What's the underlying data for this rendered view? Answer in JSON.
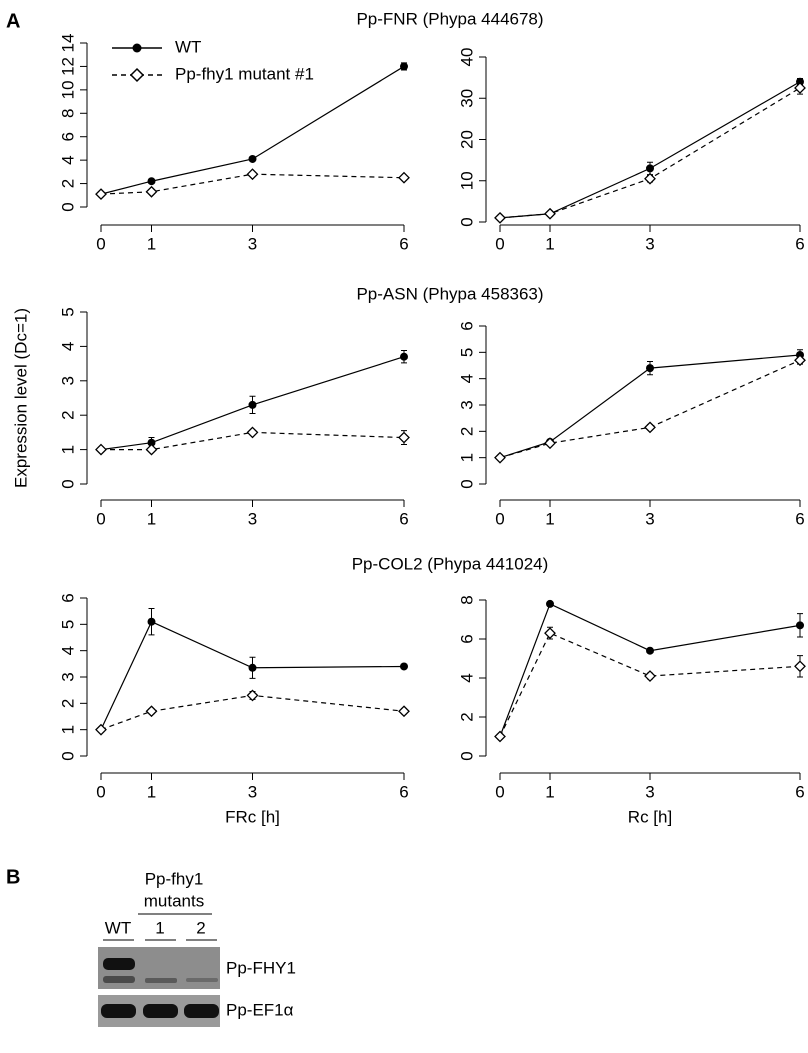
{
  "panel_labels": [
    "A",
    "B"
  ],
  "chart_data": [
    {
      "type": "line",
      "title": "Pp-FNR (Phypa 444678)",
      "x": [
        0,
        1,
        3,
        6
      ],
      "xlim": [
        0,
        6
      ],
      "xticks": [
        0,
        1,
        3,
        6
      ],
      "ylim": [
        0,
        14
      ],
      "yticks": [
        0,
        2,
        4,
        6,
        8,
        10,
        12,
        14
      ],
      "series": [
        {
          "name": "WT",
          "color": "#000000",
          "dashed": false,
          "marker": "circle",
          "values": [
            1.1,
            2.2,
            4.1,
            12.0
          ],
          "errors": [
            0.05,
            0.1,
            0.1,
            0.3
          ]
        },
        {
          "name": "Pp-fhy1 mutant #1",
          "color": "#000000",
          "dashed": true,
          "marker": "diamond",
          "values": [
            1.1,
            1.3,
            2.8,
            2.5
          ],
          "errors": [
            0.05,
            0.1,
            0.1,
            0.1
          ]
        }
      ]
    },
    {
      "type": "line",
      "x": [
        0,
        1,
        3,
        6
      ],
      "xlim": [
        0,
        6
      ],
      "xticks": [
        0,
        1,
        3,
        6
      ],
      "ylim": [
        0,
        40
      ],
      "yticks": [
        0,
        10,
        20,
        30,
        40
      ],
      "series": [
        {
          "color": "#000000",
          "dashed": false,
          "marker": "circle",
          "values": [
            1,
            2,
            13,
            34
          ],
          "errors": [
            0.2,
            0.3,
            1.5,
            0.8
          ]
        },
        {
          "color": "#000000",
          "dashed": true,
          "marker": "diamond",
          "values": [
            1,
            2,
            10.5,
            32.5
          ],
          "errors": [
            0.2,
            0.3,
            0.8,
            1.5
          ]
        }
      ]
    },
    {
      "type": "line",
      "title": "Pp-ASN (Phypa 458363)",
      "y_label": "Expression level (Dc=1)",
      "x": [
        0,
        1,
        3,
        6
      ],
      "xlim": [
        0,
        6
      ],
      "xticks": [
        0,
        1,
        3,
        6
      ],
      "ylim": [
        0,
        5
      ],
      "yticks": [
        0,
        1,
        2,
        3,
        4,
        5
      ],
      "series": [
        {
          "color": "#000000",
          "dashed": false,
          "marker": "circle",
          "values": [
            1,
            1.2,
            2.3,
            3.7
          ],
          "errors": [
            0.05,
            0.15,
            0.25,
            0.18
          ]
        },
        {
          "color": "#000000",
          "dashed": true,
          "marker": "diamond",
          "values": [
            1,
            1,
            1.5,
            1.35
          ],
          "errors": [
            0.02,
            0.05,
            0.07,
            0.2
          ]
        }
      ]
    },
    {
      "type": "line",
      "x": [
        0,
        1,
        3,
        6
      ],
      "xlim": [
        0,
        6
      ],
      "xticks": [
        0,
        1,
        3,
        6
      ],
      "ylim": [
        0,
        6
      ],
      "yticks": [
        0,
        1,
        2,
        3,
        4,
        5,
        6
      ],
      "series": [
        {
          "color": "#000000",
          "dashed": false,
          "marker": "circle",
          "values": [
            1,
            1.6,
            4.4,
            4.9
          ],
          "errors": [
            0.02,
            0.05,
            0.25,
            0.2
          ]
        },
        {
          "color": "#000000",
          "dashed": true,
          "marker": "diamond",
          "values": [
            1,
            1.55,
            2.15,
            4.7
          ],
          "errors": [
            0.02,
            0.05,
            0.1,
            0.15
          ]
        }
      ]
    },
    {
      "type": "line",
      "title": "Pp-COL2 (Phypa 441024)",
      "x_label": "FRc [h]",
      "x": [
        0,
        1,
        3,
        6
      ],
      "xlim": [
        0,
        6
      ],
      "xticks": [
        0,
        1,
        3,
        6
      ],
      "ylim": [
        0,
        6
      ],
      "yticks": [
        0,
        1,
        2,
        3,
        4,
        5,
        6
      ],
      "series": [
        {
          "color": "#000000",
          "dashed": false,
          "marker": "circle",
          "values": [
            1,
            5.1,
            3.35,
            3.4
          ],
          "errors": [
            0.02,
            0.5,
            0.4,
            0.05
          ]
        },
        {
          "color": "#000000",
          "dashed": true,
          "marker": "diamond",
          "values": [
            1,
            1.7,
            2.3,
            1.7
          ],
          "errors": [
            0.02,
            0.1,
            0.15,
            0.1
          ]
        }
      ]
    },
    {
      "type": "line",
      "x_label": "Rc [h]",
      "x": [
        0,
        1,
        3,
        6
      ],
      "xlim": [
        0,
        6
      ],
      "xticks": [
        0,
        1,
        3,
        6
      ],
      "ylim": [
        0,
        8
      ],
      "yticks": [
        0,
        2,
        4,
        6,
        8
      ],
      "series": [
        {
          "color": "#000000",
          "dashed": false,
          "marker": "circle",
          "values": [
            1,
            7.8,
            5.4,
            6.7
          ],
          "errors": [
            0.02,
            0.1,
            0.1,
            0.6
          ]
        },
        {
          "color": "#000000",
          "dashed": true,
          "marker": "diamond",
          "values": [
            1,
            6.3,
            4.1,
            4.6
          ],
          "errors": [
            0.02,
            0.3,
            0.15,
            0.55
          ]
        }
      ]
    }
  ],
  "blot": {
    "group_label": [
      "Pp-fhy1",
      "mutants"
    ],
    "lanes": [
      "WT",
      "1",
      "2"
    ],
    "genes": [
      "Pp-FHY1",
      "Pp-EF1α"
    ]
  }
}
